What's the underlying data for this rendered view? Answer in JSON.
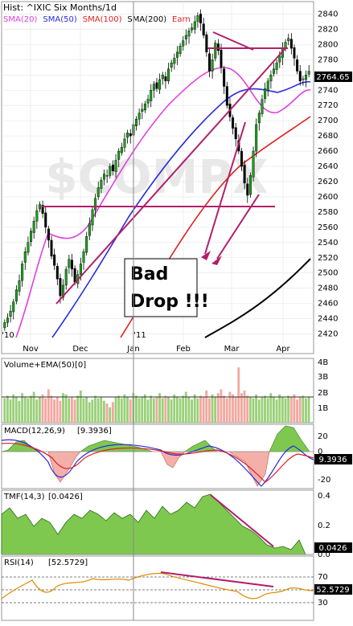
{
  "chart_data": [
    {
      "type": "candlestick",
      "title": "Hist: ^IXIC Six Months/1d",
      "watermark": "$COMPX",
      "legend": [
        {
          "name": "SMA(20)",
          "color": "#e040e0"
        },
        {
          "name": "SMA(50)",
          "color": "#2a2ae0"
        },
        {
          "name": "SMA(100)",
          "color": "#e02020"
        },
        {
          "name": "SMA(200)",
          "color": "#000000"
        },
        {
          "name": "Earn",
          "color": "#e02020"
        }
      ],
      "ylim": [
        2410,
        2850
      ],
      "yticks": [
        2420,
        2440,
        2460,
        2480,
        2500,
        2520,
        2540,
        2560,
        2580,
        2600,
        2620,
        2640,
        2660,
        2680,
        2700,
        2720,
        2740,
        2760,
        2780,
        2800,
        2820,
        2840
      ],
      "last_value": "2764.65",
      "xticks": [
        "Nov",
        "Dec",
        "Jan",
        "Feb",
        "Mar",
        "Apr"
      ],
      "year_labels": [
        "'10",
        "'11"
      ],
      "annotation_text": [
        "Bad",
        "Drop !!!"
      ],
      "closes": [
        2435,
        2441,
        2450,
        2462,
        2478,
        2490,
        2512,
        2528,
        2540,
        2555,
        2568,
        2582,
        2590,
        2578,
        2560,
        2543,
        2522,
        2510,
        2492,
        2470,
        2484,
        2505,
        2518,
        2505,
        2488,
        2498,
        2512,
        2528,
        2548,
        2565,
        2583,
        2598,
        2612,
        2622,
        2630,
        2628,
        2640,
        2634,
        2648,
        2660,
        2665,
        2676,
        2684,
        2680,
        2695,
        2702,
        2710,
        2715,
        2722,
        2728,
        2740,
        2748,
        2742,
        2754,
        2760,
        2752,
        2768,
        2776,
        2782,
        2790,
        2798,
        2805,
        2812,
        2818,
        2822,
        2830,
        2838,
        2828,
        2812,
        2790,
        2765,
        2780,
        2802,
        2792,
        2770,
        2745,
        2720,
        2705,
        2690,
        2676,
        2660,
        2640,
        2618,
        2602,
        2628,
        2660,
        2695,
        2710,
        2728,
        2742,
        2752,
        2760,
        2768,
        2776,
        2785,
        2795,
        2803,
        2808,
        2795,
        2782,
        2765,
        2752,
        2755,
        2760,
        2765
      ]
    },
    {
      "type": "bar",
      "title": "Volume+EMA(50)",
      "title_value": "[0]",
      "yticks": [
        "4B",
        "3B",
        "2B",
        "1B"
      ],
      "values": [
        1.9,
        2.1,
        1.8,
        2.2,
        2.0,
        1.7,
        2.3,
        2.0,
        1.9,
        2.1,
        2.4,
        1.8,
        2.0,
        2.2,
        1.9,
        2.6,
        2.1,
        1.8,
        2.0,
        1.7,
        2.3,
        2.2,
        1.9,
        2.0,
        1.8,
        2.1,
        2.5,
        1.9,
        2.0,
        1.6,
        1.8,
        2.1,
        1.9,
        2.0,
        1.7,
        1.5,
        1.2,
        1.6,
        2.0,
        2.1,
        1.9,
        2.2,
        2.0,
        1.8,
        2.3,
        2.1,
        1.9,
        2.0,
        2.2,
        1.8,
        2.1,
        1.9,
        2.0,
        2.3,
        1.9,
        2.1,
        2.0,
        1.8,
        2.2,
        2.0,
        1.9,
        2.1,
        2.4,
        2.0,
        1.8,
        2.2,
        1.9,
        2.1,
        2.0,
        2.5,
        1.9,
        2.2,
        2.0,
        2.3,
        2.6,
        2.1,
        1.9,
        2.4,
        2.2,
        2.0,
        4.3,
        2.3,
        2.5,
        2.1,
        2.0,
        1.9,
        2.2,
        1.8,
        2.0,
        2.1,
        1.9,
        2.3,
        2.0,
        1.8,
        2.2,
        2.0,
        1.9,
        2.1,
        2.0,
        2.2,
        1.8,
        2.0,
        2.1,
        1.9,
        2.0
      ],
      "ema": 2.0
    },
    {
      "type": "area",
      "title": "MACD(12,26,9)",
      "title_value": "[9.3936]",
      "yticks": [
        "20",
        "0",
        "-20"
      ],
      "last_value": "9.3936"
    },
    {
      "type": "area",
      "title": "TMF(14,3)",
      "title_value": "[0.0426]",
      "yticks": [
        "0.4",
        "0.2",
        "0.0"
      ],
      "last_value": "0.0426"
    },
    {
      "type": "line",
      "title": "RSI(14)",
      "title_value": "[52.5729]",
      "yticks": [
        "70",
        "50",
        "30"
      ],
      "last_value": "52.5729"
    }
  ]
}
